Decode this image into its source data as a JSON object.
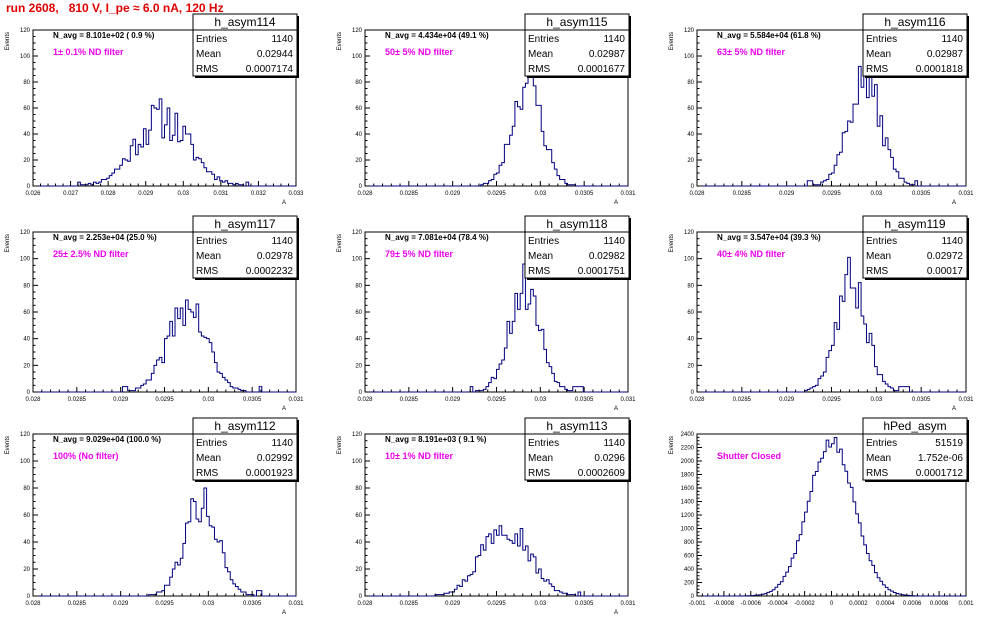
{
  "page": {
    "run_title": "run 2608,   810 V, I_pe ≈ 6.0 nA, 120 Hz",
    "colors": {
      "title": "#e00000",
      "histogram": "#000080",
      "annotation": "#ee00ee",
      "axis": "#000000"
    }
  },
  "chart_data": [
    {
      "type": "histogram",
      "name": "h_asym114",
      "stats": {
        "entries_label": "Entries",
        "entries": "1140",
        "mean_label": "Mean",
        "mean": "0.02944",
        "rms_label": "RMS",
        "rms": "0.0007174"
      },
      "navg": "N_avg = 8.101e+02 ( 0.9 %)",
      "filter": "1± 0.1% ND filter",
      "ylabel": "Events",
      "xlabel": "A",
      "xlim": [
        0.026,
        0.033
      ],
      "ylim": [
        0,
        120
      ],
      "xticks": [
        0.026,
        0.027,
        0.028,
        0.029,
        0.03,
        0.031,
        0.032,
        0.033
      ],
      "xticklabels": [
        "0.026",
        "0.027",
        "0.028",
        "0.029",
        "0.03",
        "0.031",
        "0.032",
        "0.033"
      ],
      "yticks": [
        0,
        20,
        40,
        60,
        80,
        100,
        120
      ],
      "shape": {
        "mean": 0.02944,
        "sigma": 0.00072,
        "peak": 52,
        "noise": 0.2,
        "bins": 100,
        "range": [
          0.0272,
          0.0318
        ],
        "seed": 11
      }
    },
    {
      "type": "histogram",
      "name": "h_asym115",
      "stats": {
        "entries_label": "Entries",
        "entries": "1140",
        "mean_label": "Mean",
        "mean": "0.02987",
        "rms_label": "RMS",
        "rms": "0.0001677"
      },
      "navg": "N_avg = 4.434e+04 (49.1 %)",
      "filter": "50± 5% ND filter",
      "ylabel": "Events",
      "xlabel": "A",
      "xlim": [
        0.028,
        0.031
      ],
      "ylim": [
        0,
        120
      ],
      "xticks": [
        0.028,
        0.0285,
        0.029,
        0.0295,
        0.03,
        0.0305,
        0.031
      ],
      "xticklabels": [
        "0.028",
        "0.0285",
        "0.029",
        "0.0295",
        "0.03",
        "0.0305",
        "0.031"
      ],
      "yticks": [
        0,
        20,
        40,
        60,
        80,
        100,
        120
      ],
      "shape": {
        "mean": 0.02985,
        "sigma": 0.00017,
        "peak": 80,
        "noise": 0.14,
        "bins": 100,
        "range": [
          0.02925,
          0.03045
        ],
        "seed": 23
      }
    },
    {
      "type": "histogram",
      "name": "h_asym116",
      "stats": {
        "entries_label": "Entries",
        "entries": "1140",
        "mean_label": "Mean",
        "mean": "0.02987",
        "rms_label": "RMS",
        "rms": "0.0001818"
      },
      "navg": "N_avg = 5.584e+04 (61.8 %)",
      "filter": "63± 5% ND filter",
      "ylabel": "Events",
      "xlabel": "A",
      "xlim": [
        0.028,
        0.031
      ],
      "ylim": [
        0,
        120
      ],
      "xticks": [
        0.028,
        0.0285,
        0.029,
        0.0295,
        0.03,
        0.0305,
        0.031
      ],
      "xticklabels": [
        "0.028",
        "0.0285",
        "0.029",
        "0.0295",
        "0.03",
        "0.0305",
        "0.031"
      ],
      "yticks": [
        0,
        20,
        40,
        60,
        80,
        100,
        120
      ],
      "shape": {
        "mean": 0.02987,
        "sigma": 0.00018,
        "peak": 82,
        "noise": 0.14,
        "bins": 100,
        "range": [
          0.0292,
          0.0305
        ],
        "seed": 37
      }
    },
    {
      "type": "histogram",
      "name": "h_asym117",
      "stats": {
        "entries_label": "Entries",
        "entries": "1140",
        "mean_label": "Mean",
        "mean": "0.02978",
        "rms_label": "RMS",
        "rms": "0.0002232"
      },
      "navg": "N_avg = 2.253e+04 (25.0 %)",
      "filter": "25± 2.5% ND filter",
      "ylabel": "Events",
      "xlabel": "A",
      "xlim": [
        0.028,
        0.031
      ],
      "ylim": [
        0,
        120
      ],
      "xticks": [
        0.028,
        0.0285,
        0.029,
        0.0295,
        0.03,
        0.0305,
        0.031
      ],
      "xticklabels": [
        "0.028",
        "0.0285",
        "0.029",
        "0.0295",
        "0.03",
        "0.0305",
        "0.031"
      ],
      "yticks": [
        0,
        20,
        40,
        60,
        80,
        100,
        120
      ],
      "shape": {
        "mean": 0.02976,
        "sigma": 0.00022,
        "peak": 64,
        "noise": 0.15,
        "bins": 100,
        "range": [
          0.029,
          0.0306
        ],
        "seed": 41
      }
    },
    {
      "type": "histogram",
      "name": "h_asym118",
      "stats": {
        "entries_label": "Entries",
        "entries": "1140",
        "mean_label": "Mean",
        "mean": "0.02982",
        "rms_label": "RMS",
        "rms": "0.0001751"
      },
      "navg": "N_avg = 7.081e+04 (78.4 %)",
      "filter": "79± 5% ND filter",
      "ylabel": "Events",
      "xlabel": "A",
      "xlim": [
        0.028,
        0.031
      ],
      "ylim": [
        0,
        120
      ],
      "xticks": [
        0.028,
        0.0285,
        0.029,
        0.0295,
        0.03,
        0.0305,
        0.031
      ],
      "xticklabels": [
        "0.028",
        "0.0285",
        "0.029",
        "0.0295",
        "0.03",
        "0.0305",
        "0.031"
      ],
      "yticks": [
        0,
        20,
        40,
        60,
        80,
        100,
        120
      ],
      "shape": {
        "mean": 0.02982,
        "sigma": 0.000175,
        "peak": 80,
        "noise": 0.15,
        "bins": 100,
        "range": [
          0.0292,
          0.0305
        ],
        "seed": 53
      }
    },
    {
      "type": "histogram",
      "name": "h_asym119",
      "stats": {
        "entries_label": "Entries",
        "entries": "1140",
        "mean_label": "Mean",
        "mean": "0.02972",
        "rms_label": "RMS",
        "rms": "0.00017"
      },
      "navg": "N_avg = 3.547e+04 (39.3 %)",
      "filter": "40± 4% ND filter",
      "ylabel": "Events",
      "xlabel": "A",
      "xlim": [
        0.028,
        0.031
      ],
      "ylim": [
        0,
        120
      ],
      "xticks": [
        0.028,
        0.0285,
        0.029,
        0.0295,
        0.03,
        0.0305,
        0.031
      ],
      "xticklabels": [
        "0.028",
        "0.0285",
        "0.029",
        "0.0295",
        "0.03",
        "0.0305",
        "0.031"
      ],
      "yticks": [
        0,
        20,
        40,
        60,
        80,
        100,
        120
      ],
      "shape": {
        "mean": 0.02972,
        "sigma": 0.00017,
        "peak": 84,
        "noise": 0.14,
        "bins": 100,
        "range": [
          0.0292,
          0.0304
        ],
        "seed": 67
      }
    },
    {
      "type": "histogram",
      "name": "h_asym112",
      "stats": {
        "entries_label": "Entries",
        "entries": "1140",
        "mean_label": "Mean",
        "mean": "0.02992",
        "rms_label": "RMS",
        "rms": "0.0001923"
      },
      "navg": "N_avg = 9.029e+04 (100.0 %)",
      "filter": "100% (No filter)",
      "ylabel": "Events",
      "xlabel": "A",
      "xlim": [
        0.028,
        0.031
      ],
      "ylim": [
        0,
        120
      ],
      "xticks": [
        0.028,
        0.0285,
        0.029,
        0.0295,
        0.03,
        0.0305,
        0.031
      ],
      "xticklabels": [
        "0.028",
        "0.0285",
        "0.029",
        "0.0295",
        "0.03",
        "0.0305",
        "0.031"
      ],
      "yticks": [
        0,
        20,
        40,
        60,
        80,
        100,
        120
      ],
      "shape": {
        "mean": 0.02992,
        "sigma": 0.00019,
        "peak": 70,
        "noise": 0.13,
        "bins": 100,
        "range": [
          0.0293,
          0.0306
        ],
        "seed": 79
      }
    },
    {
      "type": "histogram",
      "name": "h_asym113",
      "stats": {
        "entries_label": "Entries",
        "entries": "1140",
        "mean_label": "Mean",
        "mean": "0.0296",
        "rms_label": "RMS",
        "rms": "0.0002609"
      },
      "navg": "N_avg = 8.191e+03 ( 9.1 %)",
      "filter": "10± 1% ND filter",
      "ylabel": "Events",
      "xlabel": "A",
      "xlim": [
        0.028,
        0.031
      ],
      "ylim": [
        0,
        120
      ],
      "xticks": [
        0.028,
        0.0285,
        0.029,
        0.0295,
        0.03,
        0.0305,
        0.031
      ],
      "xticklabels": [
        "0.028",
        "0.0285",
        "0.029",
        "0.0295",
        "0.03",
        "0.0305",
        "0.031"
      ],
      "yticks": [
        0,
        20,
        40,
        60,
        80,
        100,
        120
      ],
      "shape": {
        "mean": 0.0296,
        "sigma": 0.00026,
        "peak": 56,
        "noise": 0.16,
        "bins": 100,
        "range": [
          0.0288,
          0.0305
        ],
        "seed": 97
      }
    },
    {
      "type": "histogram",
      "name": "hPed_asym",
      "stats": {
        "entries_label": "Entries",
        "entries": "51519",
        "mean_label": "Mean",
        "mean": "1.752e-06",
        "rms_label": "RMS",
        "rms": "0.0001712"
      },
      "navg": "",
      "filter": "Shutter Closed",
      "ylabel": "Events",
      "xlabel": "",
      "xlim": [
        -0.001,
        0.001
      ],
      "ylim": [
        0,
        2400
      ],
      "xticks": [
        -0.001,
        -0.0008,
        -0.0006,
        -0.0004,
        -0.0002,
        0,
        0.0002,
        0.0004,
        0.0006,
        0.0008,
        0.001
      ],
      "xticklabels": [
        "-0.001",
        "-0.0008",
        "-0.0006",
        "-0.0004",
        "-0.0002",
        "0",
        "0.0002",
        "0.0004",
        "0.0006",
        "0.0008",
        "0.001"
      ],
      "yticks": [
        0,
        200,
        400,
        600,
        800,
        1000,
        1200,
        1400,
        1600,
        1800,
        2000,
        2200,
        2400
      ],
      "shape": {
        "mean": 0.0,
        "sigma": 0.000171,
        "peak": 2280,
        "noise": 0.03,
        "bins": 100,
        "range": [
          -0.00065,
          0.00065
        ],
        "seed": 5
      }
    }
  ]
}
